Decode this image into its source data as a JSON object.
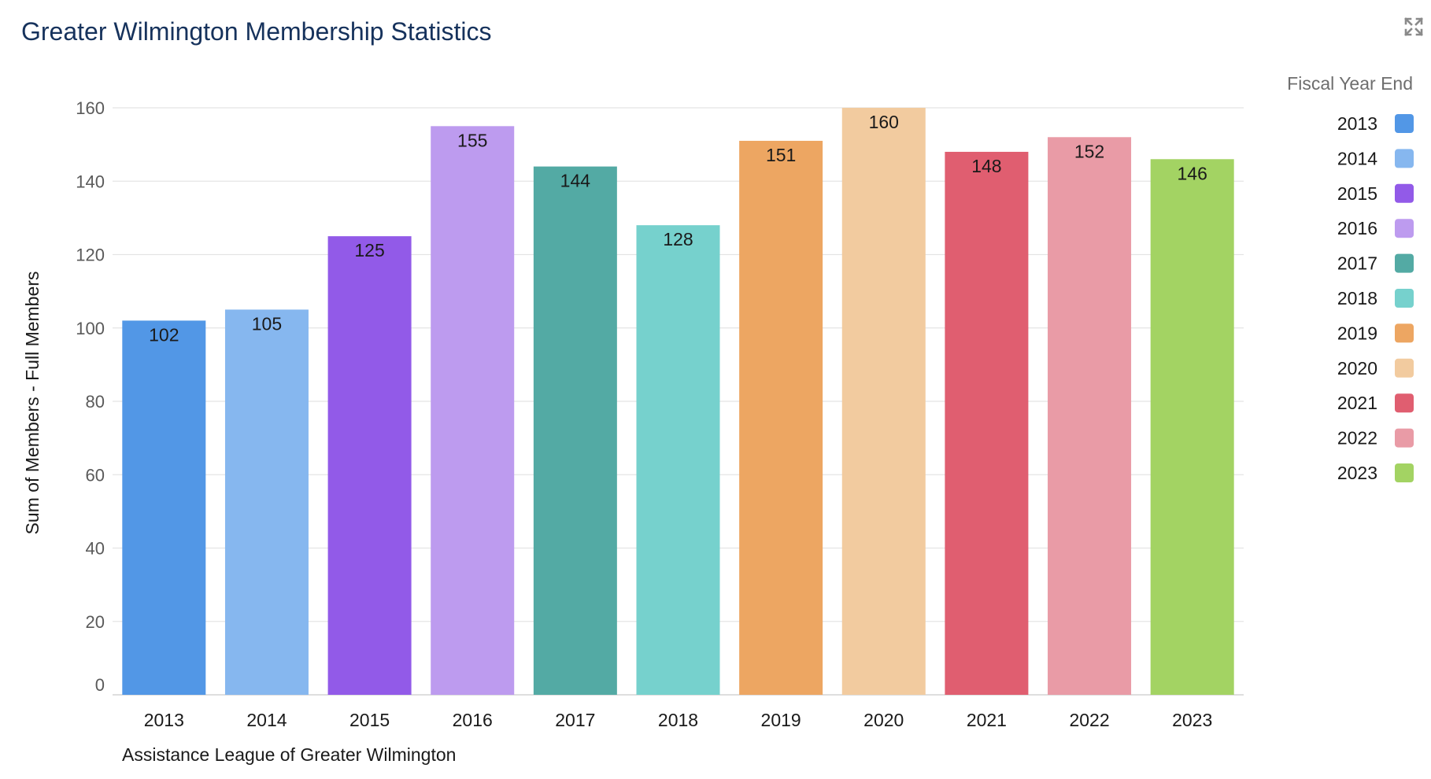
{
  "header": {
    "title": "Greater Wilmington Membership Statistics"
  },
  "icons": {
    "expand": "expand-icon"
  },
  "chart_data": {
    "type": "bar",
    "title": "Greater Wilmington Membership Statistics",
    "xlabel": "Assistance League of Greater Wilmington",
    "ylabel": "Sum of Members - Full Members",
    "ylim": [
      0,
      160
    ],
    "yticks": [
      0,
      20,
      40,
      60,
      80,
      100,
      120,
      140,
      160
    ],
    "grid": true,
    "legend": {
      "title": "Fiscal Year End",
      "placement": "right"
    },
    "categories": [
      "2013",
      "2014",
      "2015",
      "2016",
      "2017",
      "2018",
      "2019",
      "2020",
      "2021",
      "2022",
      "2023"
    ],
    "values": [
      102,
      105,
      125,
      155,
      144,
      128,
      151,
      160,
      148,
      152,
      146
    ],
    "colors": [
      "#5297e6",
      "#86b7ef",
      "#925ae8",
      "#bd9bef",
      "#53aaa4",
      "#76d1cd",
      "#eda662",
      "#f2cb9f",
      "#e05e70",
      "#e99ba6",
      "#a3d363"
    ]
  }
}
